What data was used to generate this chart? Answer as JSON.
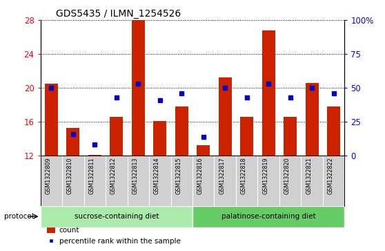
{
  "title": "GDS5435 / ILMN_1254526",
  "samples": [
    "GSM1322809",
    "GSM1322810",
    "GSM1322811",
    "GSM1322812",
    "GSM1322813",
    "GSM1322814",
    "GSM1322815",
    "GSM1322816",
    "GSM1322817",
    "GSM1322818",
    "GSM1322819",
    "GSM1322820",
    "GSM1322821",
    "GSM1322822"
  ],
  "count_values": [
    20.5,
    15.3,
    12.1,
    16.6,
    28.2,
    16.1,
    17.8,
    13.2,
    21.2,
    16.6,
    26.8,
    16.6,
    20.6,
    17.8
  ],
  "percentile_values": [
    50,
    16,
    8,
    43,
    53,
    41,
    46,
    14,
    50,
    43,
    53,
    43,
    50,
    46
  ],
  "ylim_left": [
    12,
    28
  ],
  "ylim_right": [
    0,
    100
  ],
  "yticks_left": [
    12,
    16,
    20,
    24,
    28
  ],
  "yticks_right": [
    0,
    25,
    50,
    75,
    100
  ],
  "bar_color": "#cc2200",
  "marker_color": "#0000cc",
  "sample_bg_color": "#d0d0d0",
  "sucrose_color": "#aaeaaa",
  "palatinose_color": "#66cc66",
  "sucrose_label": "sucrose-containing diet",
  "palatinose_label": "palatinose-containing diet",
  "protocol_label": "protocol",
  "legend_count": "count",
  "legend_percentile": "percentile rank within the sample",
  "sucrose_indices": [
    0,
    1,
    2,
    3,
    4,
    5,
    6
  ],
  "palatinose_indices": [
    7,
    8,
    9,
    10,
    11,
    12,
    13
  ]
}
